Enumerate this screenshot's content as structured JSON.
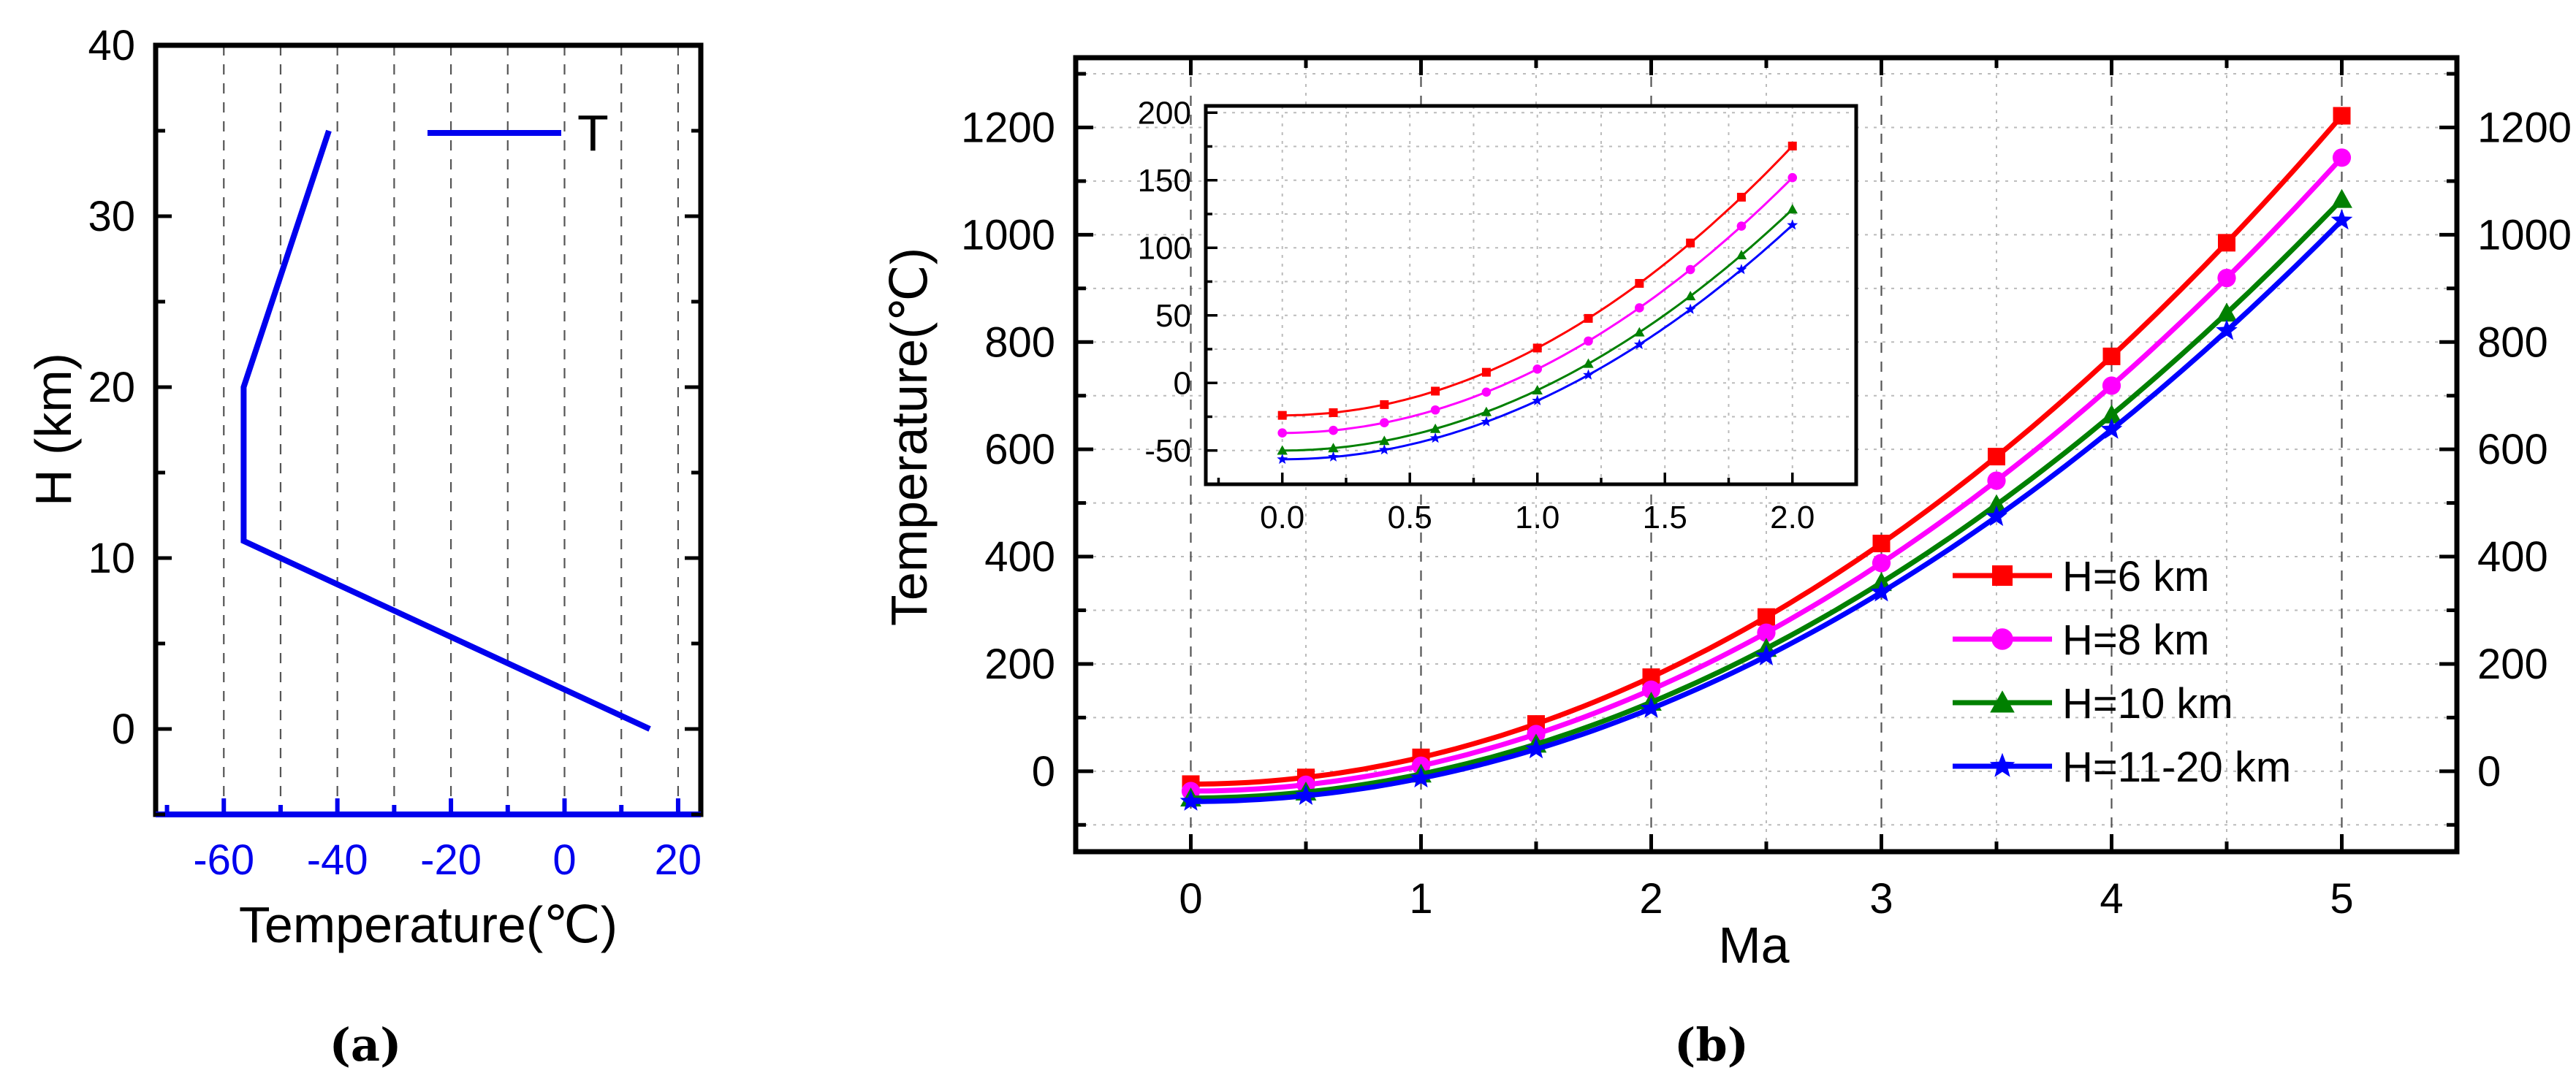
{
  "chart_data": [
    {
      "id": "a",
      "type": "line",
      "panel_label": "(a)",
      "xlabel": "Temperature(℃)",
      "ylabel": "H (km)",
      "xlim": [
        -72,
        24
      ],
      "ylim": [
        -5,
        40
      ],
      "xticks": [
        -60,
        -40,
        -20,
        0,
        20
      ],
      "yticks": [
        0,
        10,
        20,
        30,
        40
      ],
      "legend": {
        "position": "top-right"
      },
      "series": [
        {
          "name": "T",
          "color": "#0000ee",
          "x": [
            15,
            -56.5,
            -56.5,
            -41.5
          ],
          "y": [
            0,
            11,
            20,
            35
          ]
        }
      ]
    },
    {
      "id": "b",
      "type": "line",
      "panel_label": "(b)",
      "xlabel": "Ma",
      "ylabel": "Temperature(℃)",
      "xlim": [
        -0.5,
        5.5
      ],
      "ylim": [
        -150,
        1330
      ],
      "xticks": [
        0,
        1,
        2,
        3,
        4,
        5
      ],
      "yticks": [
        0,
        200,
        400,
        600,
        800,
        1000,
        1200
      ],
      "right_yticks": [
        0,
        200,
        400,
        600,
        800,
        1000,
        1200
      ],
      "legend": {
        "position": "center-right"
      },
      "x": [
        0,
        0.5,
        1,
        1.5,
        2,
        2.5,
        3,
        3.5,
        4,
        4.5,
        5
      ],
      "series": [
        {
          "name": "H=6 km",
          "color": "#ff0000",
          "marker": "square",
          "T0": -24
        },
        {
          "name": "H=8 km",
          "color": "#ff00ff",
          "marker": "circle",
          "T0": -37
        },
        {
          "name": "H=10 km",
          "color": "#008000",
          "marker": "triangle",
          "T0": -50
        },
        {
          "name": "H=11-20 km",
          "color": "#0000ff",
          "marker": "star",
          "T0": -56.5
        }
      ],
      "inset": {
        "xlim": [
          -0.3,
          2.25
        ],
        "ylim": [
          -75,
          205
        ],
        "xticks": [
          0.0,
          0.5,
          1.0,
          1.5,
          2.0
        ],
        "xtick_labels": [
          "0.0",
          "0.5",
          "1.0",
          "1.5",
          "2.0"
        ],
        "yticks": [
          -50,
          0,
          50,
          100,
          150,
          200
        ],
        "x": [
          0,
          0.2,
          0.4,
          0.6,
          0.8,
          1.0,
          1.2,
          1.4,
          1.6,
          1.8,
          2.0
        ]
      }
    }
  ]
}
